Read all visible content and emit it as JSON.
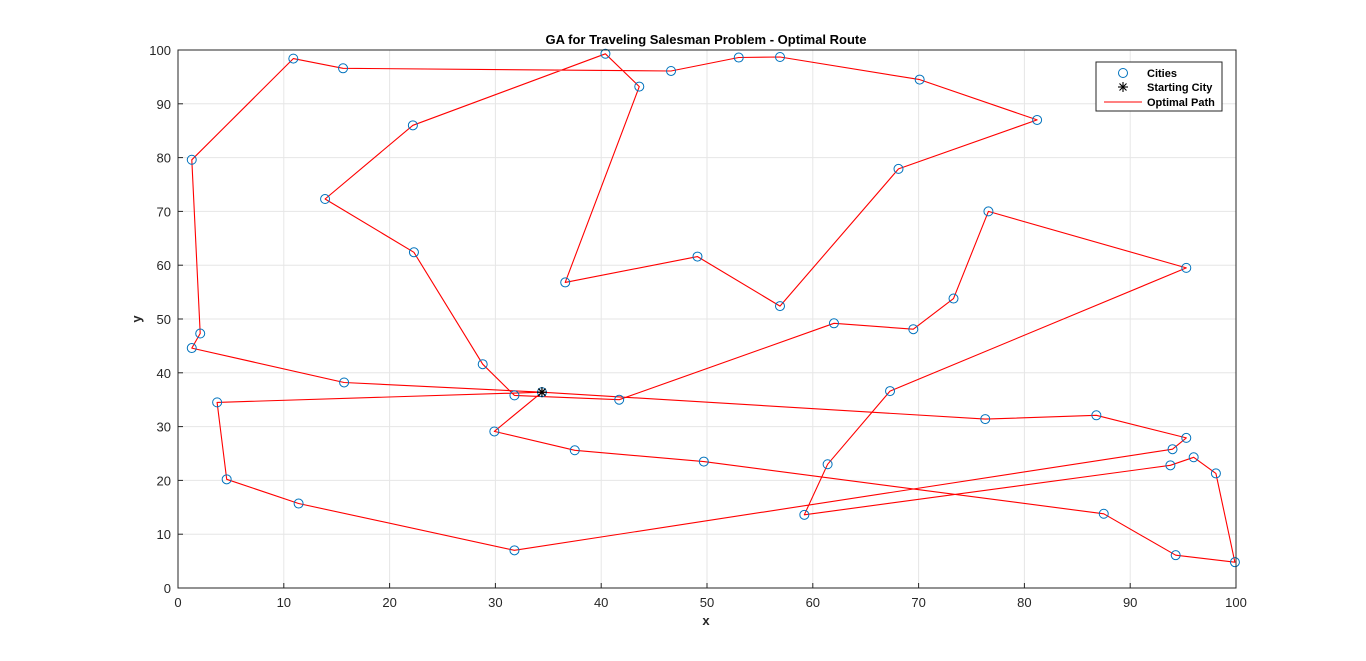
{
  "chart_data": {
    "type": "line",
    "title": "GA for Traveling Salesman Problem - Optimal Route",
    "xlabel": "x",
    "ylabel": "y",
    "xlim": [
      0,
      100
    ],
    "ylim": [
      0,
      100
    ],
    "xticks": [
      "0",
      "10",
      "20",
      "30",
      "40",
      "50",
      "60",
      "70",
      "80",
      "90",
      "100"
    ],
    "yticks": [
      "0",
      "10",
      "20",
      "30",
      "40",
      "50",
      "60",
      "70",
      "80",
      "90",
      "100"
    ],
    "grid": true,
    "legend_position": "top-right",
    "legend": {
      "cities": "Cities",
      "start": "Starting City",
      "path": "Optimal Path"
    },
    "colors": {
      "cities": "#0072BD",
      "path": "#FF0000",
      "start": "#000000",
      "grid": "#e6e6e6"
    },
    "start": {
      "x": 34.4,
      "y": 36.4
    },
    "route": [
      [
        34.4,
        36.4
      ],
      [
        29.9,
        29.1
      ],
      [
        37.5,
        25.6
      ],
      [
        49.7,
        23.5
      ],
      [
        87.5,
        13.8
      ],
      [
        94.3,
        6.1
      ],
      [
        99.9,
        4.8
      ],
      [
        98.1,
        21.3
      ],
      [
        96.0,
        24.3
      ],
      [
        93.8,
        22.8
      ],
      [
        59.2,
        13.6
      ],
      [
        61.4,
        23.0
      ],
      [
        67.3,
        36.6
      ],
      [
        95.3,
        59.5
      ],
      [
        76.6,
        70.0
      ],
      [
        73.3,
        53.8
      ],
      [
        69.5,
        48.1
      ],
      [
        62.0,
        49.2
      ],
      [
        41.7,
        35.0
      ],
      [
        31.8,
        35.8
      ],
      [
        28.8,
        41.6
      ],
      [
        22.3,
        62.4
      ],
      [
        13.9,
        72.3
      ],
      [
        22.2,
        86.0
      ],
      [
        40.4,
        99.3
      ],
      [
        43.6,
        93.2
      ],
      [
        36.6,
        56.8
      ],
      [
        49.1,
        61.6
      ],
      [
        56.9,
        52.4
      ],
      [
        68.1,
        77.9
      ],
      [
        81.2,
        87.0
      ],
      [
        70.1,
        94.5
      ],
      [
        56.9,
        98.7
      ],
      [
        53.0,
        98.6
      ],
      [
        46.6,
        96.1
      ],
      [
        15.6,
        96.6
      ],
      [
        10.9,
        98.4
      ],
      [
        1.3,
        79.6
      ],
      [
        2.1,
        47.3
      ],
      [
        1.3,
        44.6
      ],
      [
        15.7,
        38.2
      ],
      [
        34.4,
        36.4
      ],
      [
        76.3,
        31.4
      ],
      [
        86.8,
        32.1
      ],
      [
        95.3,
        27.9
      ],
      [
        94.0,
        25.8
      ],
      [
        31.8,
        7.0
      ],
      [
        11.4,
        15.7
      ],
      [
        4.6,
        20.2
      ],
      [
        3.7,
        34.5
      ],
      [
        34.4,
        36.4
      ]
    ]
  }
}
